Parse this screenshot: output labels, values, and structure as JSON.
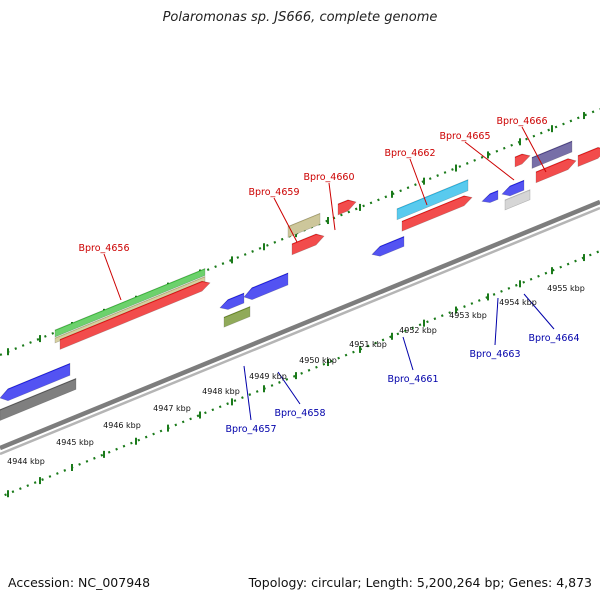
{
  "title": "Polaromonas sp. JS666, complete genome",
  "footer": {
    "accession": "Accession: NC_007948",
    "summary": "Topology: circular; Length: 5,200,264 bp; Genes: 4,873"
  },
  "colors": {
    "forward_label": "#cc0000",
    "reverse_label": "#0000aa",
    "tick": "#1a7a1a",
    "backbone": "#8a8a8a"
  },
  "ticks": [
    {
      "label": "4944 kbp"
    },
    {
      "label": "4945 kbp"
    },
    {
      "label": "4946 kbp"
    },
    {
      "label": "4947 kbp"
    },
    {
      "label": "4948 kbp"
    },
    {
      "label": "4949 kbp"
    },
    {
      "label": "4950 kbp"
    },
    {
      "label": "4951 kbp"
    },
    {
      "label": "4952 kbp"
    },
    {
      "label": "4953 kbp"
    },
    {
      "label": "4954 kbp"
    },
    {
      "label": "4955 kbp"
    }
  ],
  "gene_labels_forward": [
    {
      "name": "Bpro_4656"
    },
    {
      "name": "Bpro_4659"
    },
    {
      "name": "Bpro_4660"
    },
    {
      "name": "Bpro_4662"
    },
    {
      "name": "Bpro_4665"
    },
    {
      "name": "Bpro_4666"
    }
  ],
  "gene_labels_reverse": [
    {
      "name": "Bpro_4657"
    },
    {
      "name": "Bpro_4658"
    },
    {
      "name": "Bpro_4661"
    },
    {
      "name": "Bpro_4663"
    },
    {
      "name": "Bpro_4664"
    }
  ]
}
